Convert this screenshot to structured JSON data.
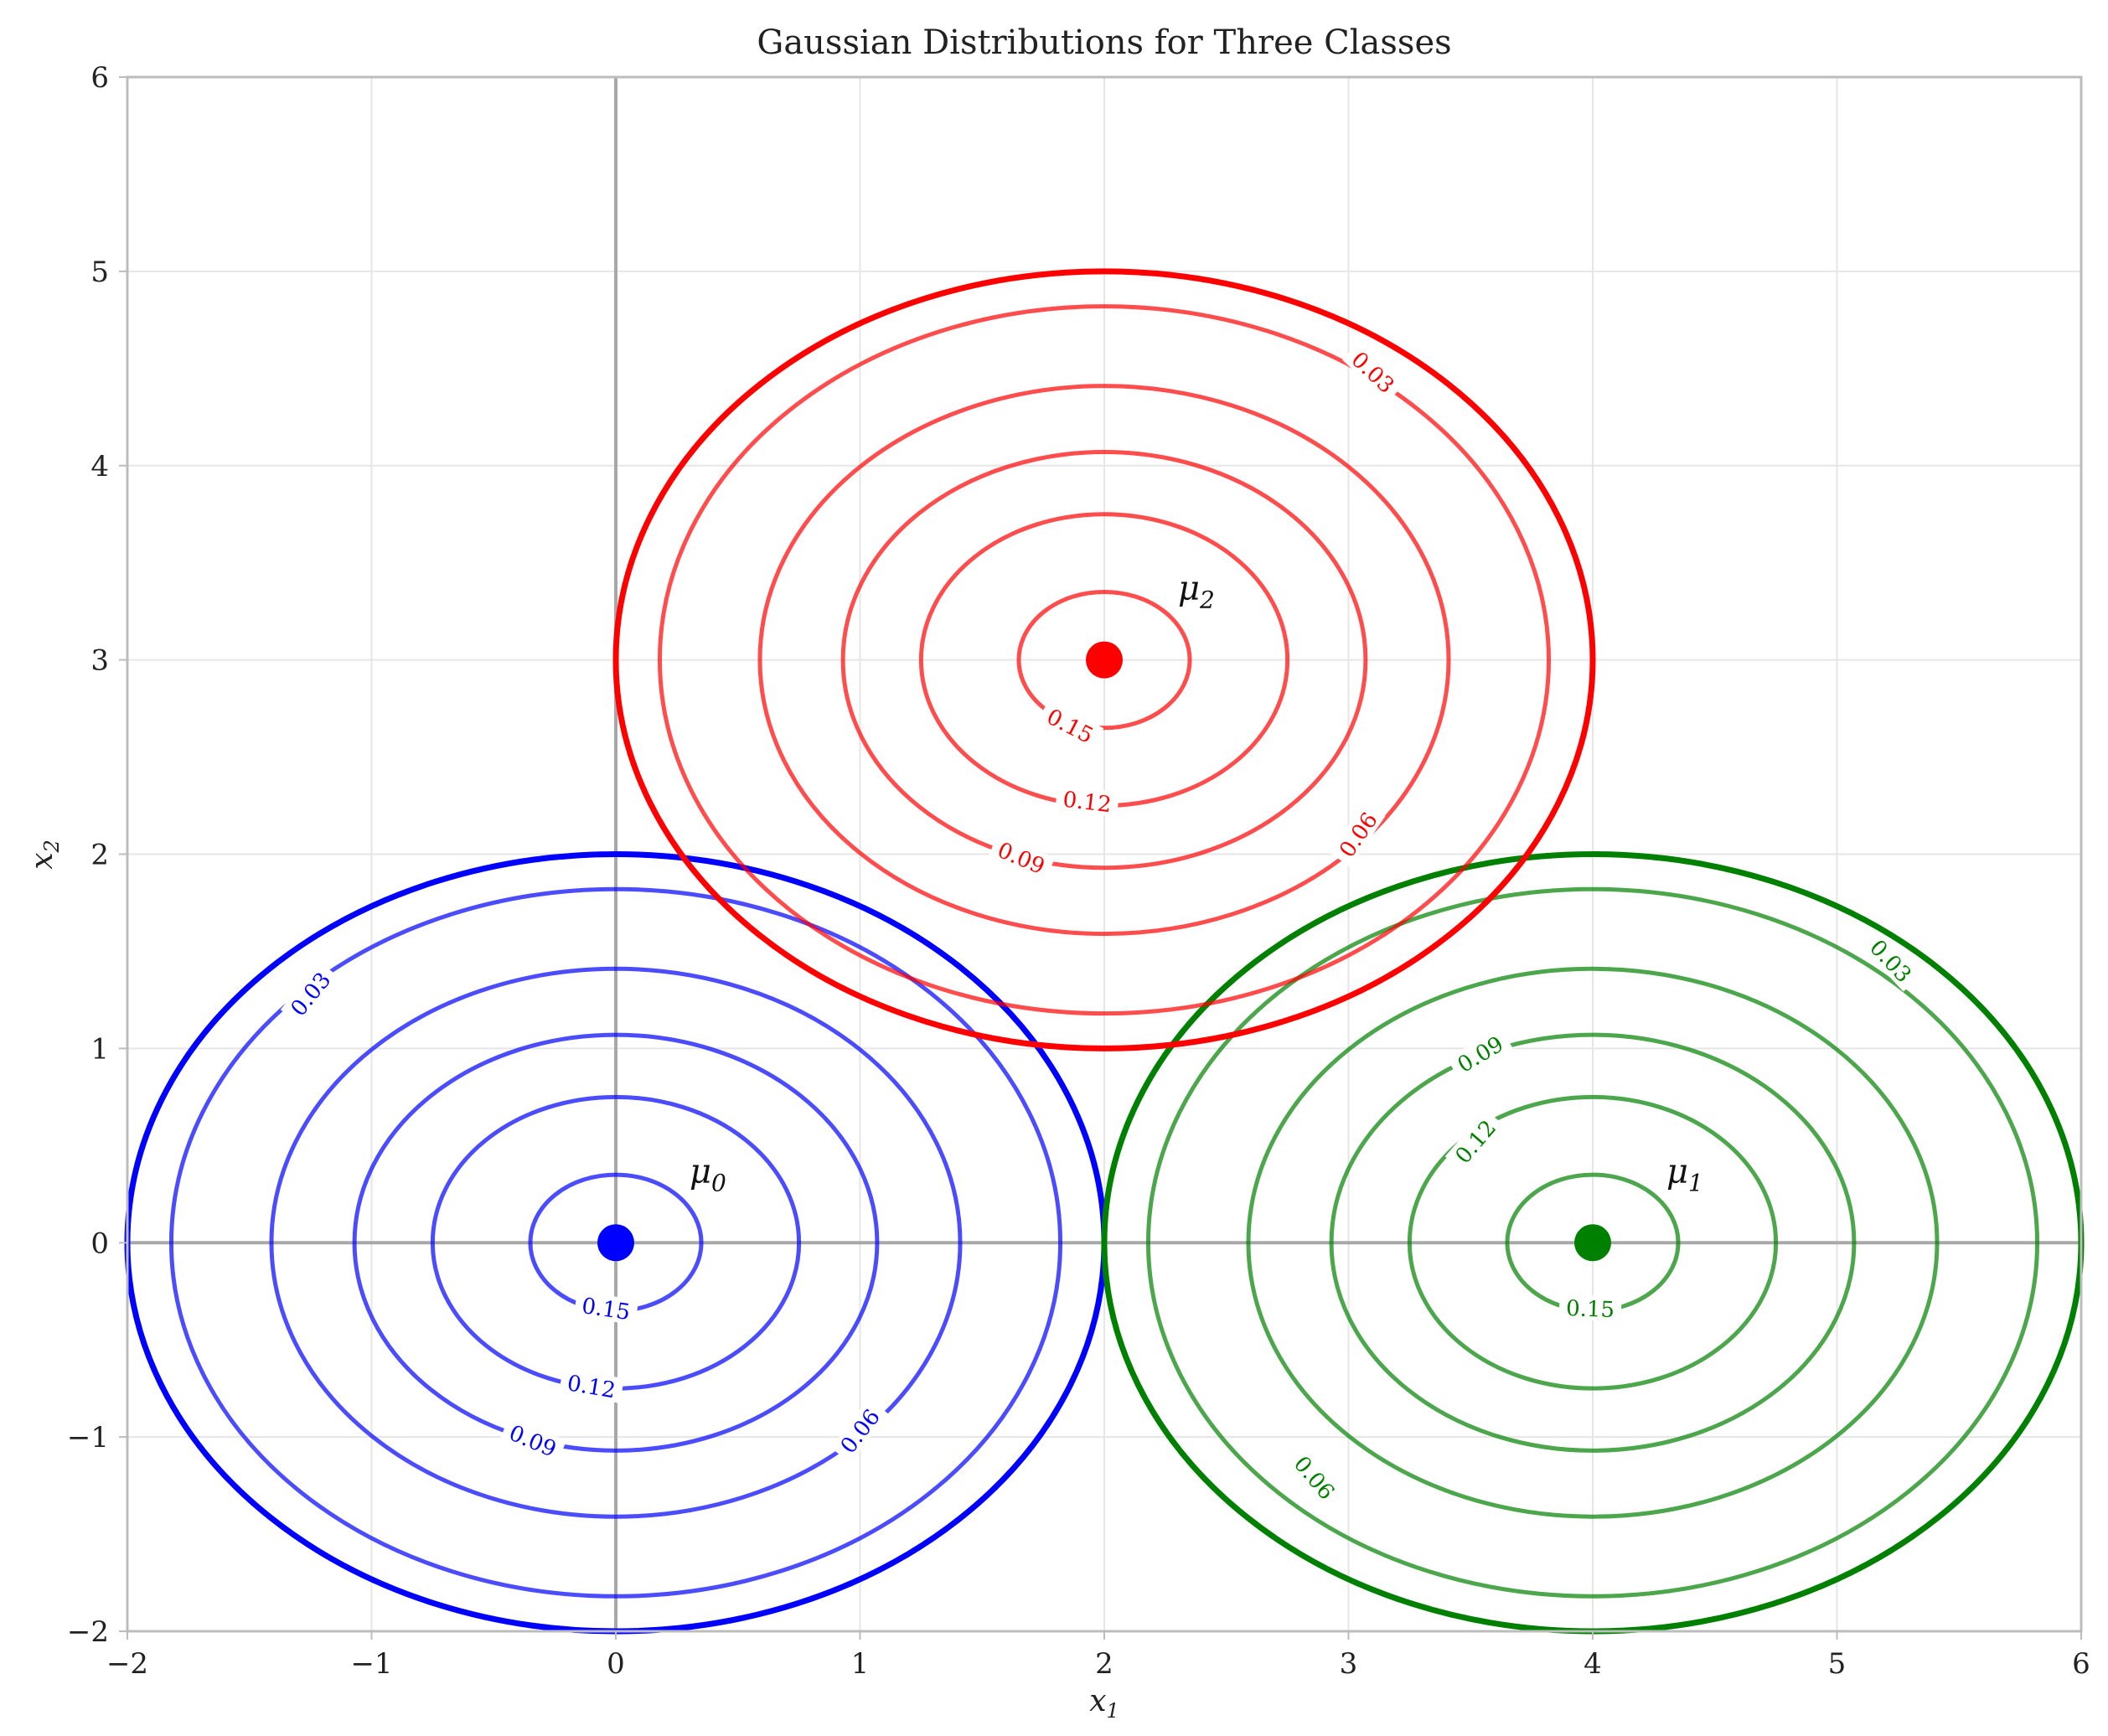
{
  "chart_data": {
    "type": "contour",
    "title": "Gaussian Distributions for Three Classes",
    "xlabel": "x",
    "xlabel_sub": "1",
    "ylabel": "x",
    "ylabel_sub": "2",
    "xlim": [
      -2,
      6
    ],
    "ylim": [
      -2,
      6
    ],
    "xticks": [
      -2,
      -1,
      0,
      1,
      2,
      3,
      4,
      5,
      6
    ],
    "yticks": [
      -2,
      -1,
      0,
      1,
      2,
      3,
      4,
      5,
      6
    ],
    "xtick_labels": [
      "−2",
      "−1",
      "0",
      "1",
      "2",
      "3",
      "4",
      "5",
      "6"
    ],
    "ytick_labels": [
      "−2",
      "−1",
      "0",
      "1",
      "2",
      "3",
      "4",
      "5",
      "6"
    ],
    "grid": true,
    "reference_lines": {
      "x": 0,
      "y": 0
    },
    "contour_levels": [
      0.03,
      0.06,
      0.09,
      0.12,
      0.15
    ],
    "classes": [
      {
        "mean_label": "μ",
        "mean_sub": "0",
        "mean": [
          0,
          0
        ],
        "color": "#0000ff",
        "boundary_radius": [
          2,
          2
        ],
        "contours": [
          {
            "level": "0.03",
            "rx": 1.82,
            "ry": 1.82,
            "label_at": [
              -1.25,
              1.28
            ]
          },
          {
            "level": "0.06",
            "rx": 1.41,
            "ry": 1.41,
            "label_at": [
              1.0,
              -0.97
            ]
          },
          {
            "level": "0.09",
            "rx": 1.07,
            "ry": 1.07,
            "label_at": [
              -0.34,
              -1.02
            ]
          },
          {
            "level": "0.12",
            "rx": 0.75,
            "ry": 0.75,
            "label_at": [
              -0.1,
              -0.74
            ]
          },
          {
            "level": "0.15",
            "rx": 0.35,
            "ry": 0.35,
            "label_at": [
              -0.04,
              -0.34
            ]
          }
        ]
      },
      {
        "mean_label": "μ",
        "mean_sub": "1",
        "mean": [
          4,
          0
        ],
        "color": "#008000",
        "boundary_radius": [
          2,
          2
        ],
        "contours": [
          {
            "level": "0.03",
            "rx": 1.82,
            "ry": 1.82,
            "label_at": [
              5.22,
              1.45
            ]
          },
          {
            "level": "0.06",
            "rx": 1.41,
            "ry": 1.41,
            "label_at": [
              2.86,
              -1.21
            ]
          },
          {
            "level": "0.09",
            "rx": 1.07,
            "ry": 1.07,
            "label_at": [
              3.54,
              0.97
            ]
          },
          {
            "level": "0.12",
            "rx": 0.75,
            "ry": 0.75,
            "label_at": [
              3.52,
              0.52
            ]
          },
          {
            "level": "0.15",
            "rx": 0.35,
            "ry": 0.35,
            "label_at": [
              3.99,
              -0.34
            ]
          }
        ]
      },
      {
        "mean_label": "μ",
        "mean_sub": "2",
        "mean": [
          2,
          3
        ],
        "color": "#ff0000",
        "boundary_radius": [
          2,
          2
        ],
        "contours": [
          {
            "level": "0.03",
            "rx": 1.82,
            "ry": 1.82,
            "label_at": [
              3.1,
              4.48
            ]
          },
          {
            "level": "0.06",
            "rx": 1.41,
            "ry": 1.41,
            "label_at": [
              3.04,
              2.1
            ]
          },
          {
            "level": "0.09",
            "rx": 1.07,
            "ry": 1.07,
            "label_at": [
              1.66,
              1.98
            ]
          },
          {
            "level": "0.12",
            "rx": 0.75,
            "ry": 0.75,
            "label_at": [
              1.93,
              2.27
            ]
          },
          {
            "level": "0.15",
            "rx": 0.35,
            "ry": 0.35,
            "label_at": [
              1.86,
              2.66
            ]
          }
        ]
      }
    ]
  }
}
